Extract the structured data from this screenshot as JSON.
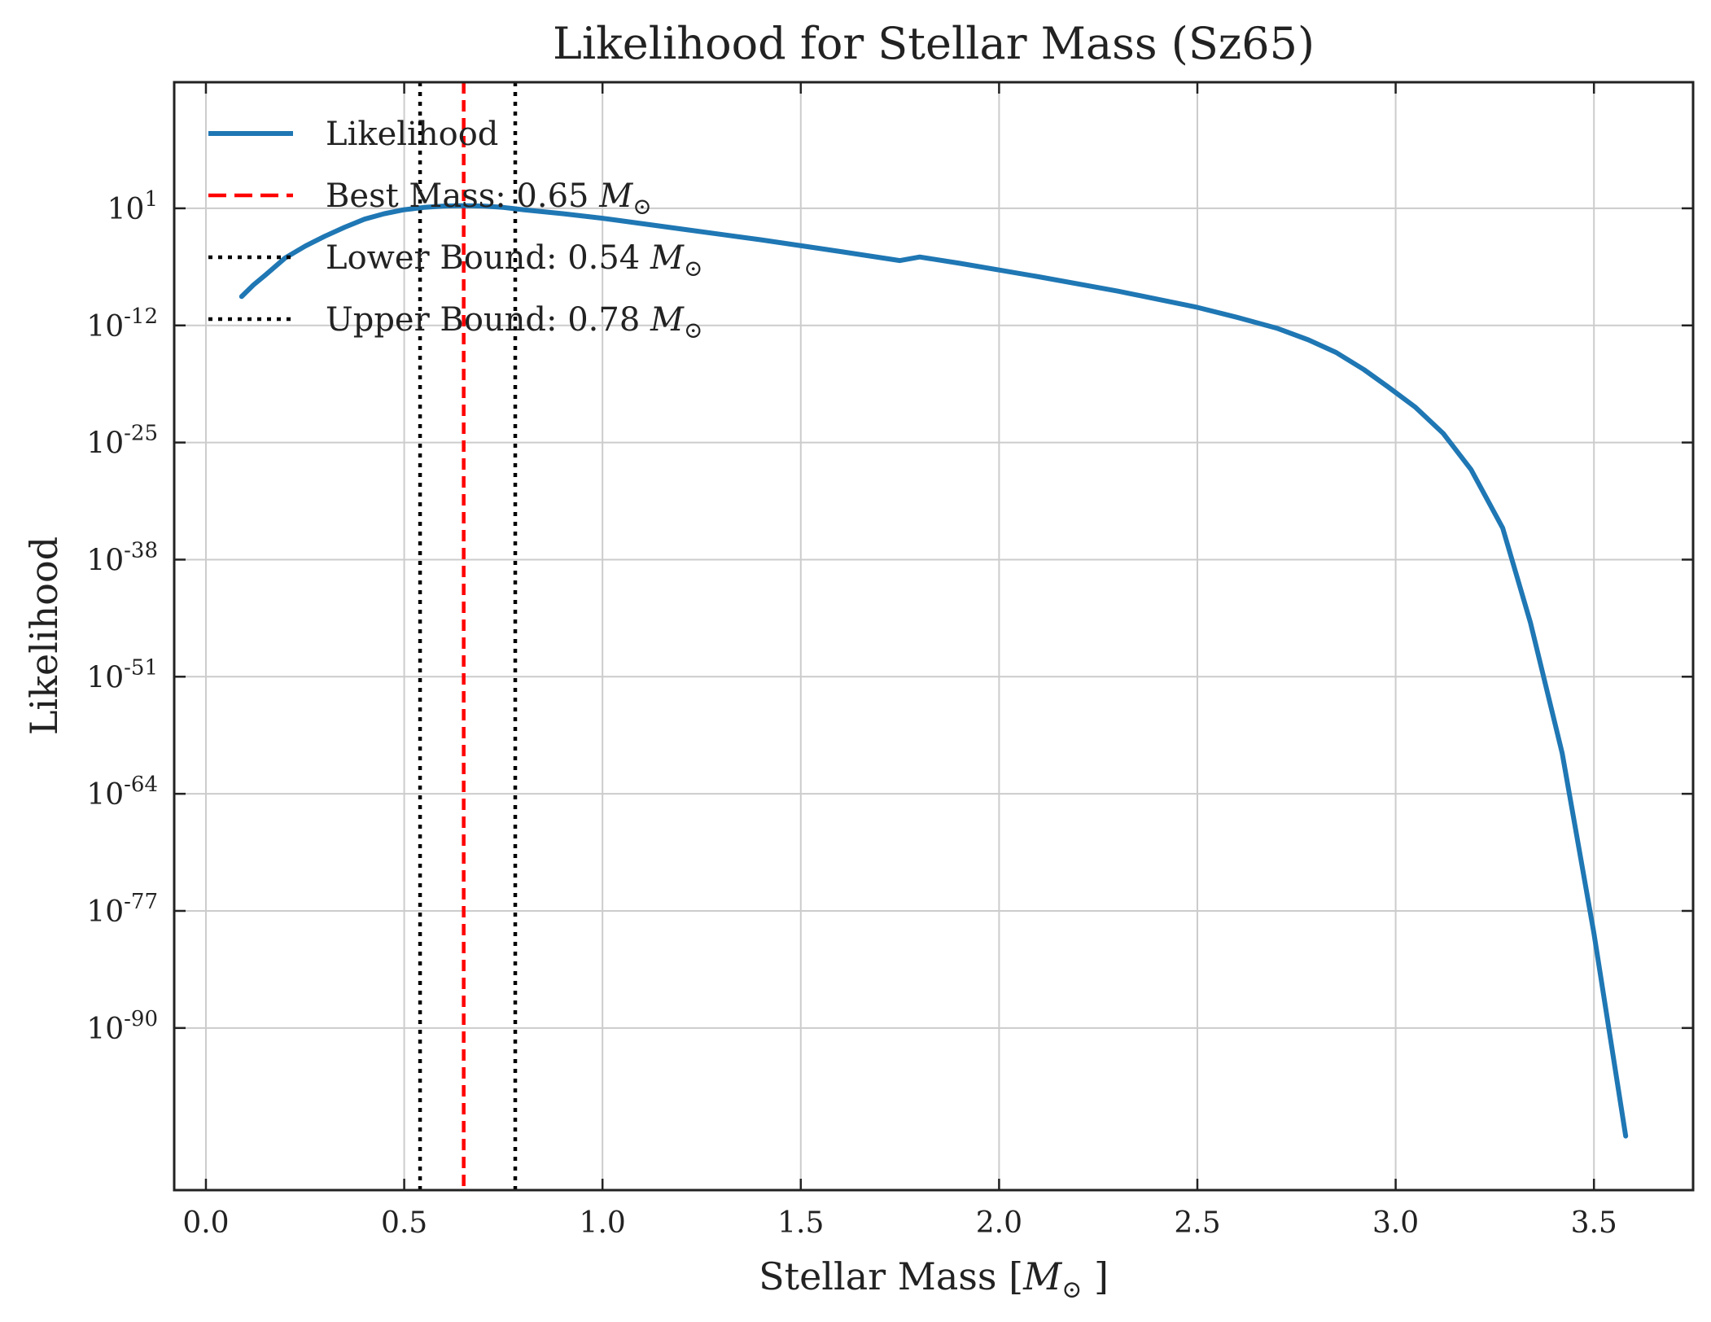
{
  "chart_data": {
    "type": "line",
    "title": "Likelihood for Stellar Mass (Sz65)",
    "xlabel": "Stellar Mass [M⊙]",
    "ylabel": "Likelihood",
    "x_unit_symbol": "M",
    "sun_symbol": "⊙",
    "xlim": [
      -0.08,
      3.75
    ],
    "ylim_exponent": [
      -108,
      15
    ],
    "yscale": "log",
    "grid": true,
    "legend_position": "top-left",
    "xticks": [
      0.0,
      0.5,
      1.0,
      1.5,
      2.0,
      2.5,
      3.0,
      3.5
    ],
    "xtick_labels": [
      "0.0",
      "0.5",
      "1.0",
      "1.5",
      "2.0",
      "2.5",
      "3.0",
      "3.5"
    ],
    "yticks_exponent": [
      1,
      -12,
      -25,
      -38,
      -51,
      -64,
      -77,
      -90
    ],
    "ytick_base": "10",
    "ytick_exponent_labels": [
      "1",
      "-12",
      "-25",
      "-38",
      "-51",
      "-64",
      "-77",
      "-90"
    ],
    "series": [
      {
        "name": "Likelihood",
        "color": "#1f77b4",
        "style": "solid",
        "x": [
          0.09,
          0.12,
          0.15,
          0.2,
          0.25,
          0.3,
          0.35,
          0.4,
          0.45,
          0.5,
          0.55,
          0.6,
          0.65,
          0.7,
          0.75,
          0.8,
          0.9,
          1.0,
          1.2,
          1.4,
          1.6,
          1.75,
          1.8,
          1.9,
          2.1,
          2.3,
          2.5,
          2.6,
          2.7,
          2.78,
          2.85,
          2.92,
          2.98,
          3.05,
          3.12,
          3.19,
          3.27,
          3.34,
          3.42,
          3.5,
          3.58
        ],
        "y_log10": [
          -8.8,
          -7.5,
          -6.4,
          -4.5,
          -3.2,
          -2.1,
          -1.1,
          -0.2,
          0.4,
          0.85,
          1.1,
          1.25,
          1.3,
          1.25,
          1.1,
          0.85,
          0.4,
          -0.1,
          -1.3,
          -2.5,
          -3.8,
          -4.8,
          -4.4,
          -5.1,
          -6.6,
          -8.2,
          -10.0,
          -11.1,
          -12.3,
          -13.6,
          -15.0,
          -16.9,
          -18.8,
          -21.1,
          -24.0,
          -28.0,
          -34.5,
          -45.0,
          -59.5,
          -79.5,
          -102.0
        ]
      },
      {
        "name": "Best Mass: 0.65 M⊙",
        "label_prefix": "Best Mass: 0.65",
        "color": "#ff0000",
        "style": "dashed",
        "x": [
          0.65
        ]
      },
      {
        "name": "Lower Bound: 0.54 M⊙",
        "label_prefix": "Lower Bound: 0.54",
        "color": "#000000",
        "style": "dotted",
        "x": [
          0.54
        ]
      },
      {
        "name": "Upper Bound: 0.78 M⊙",
        "label_prefix": "Upper Bound: 0.78",
        "color": "#000000",
        "style": "dotted",
        "x": [
          0.78
        ]
      }
    ]
  }
}
